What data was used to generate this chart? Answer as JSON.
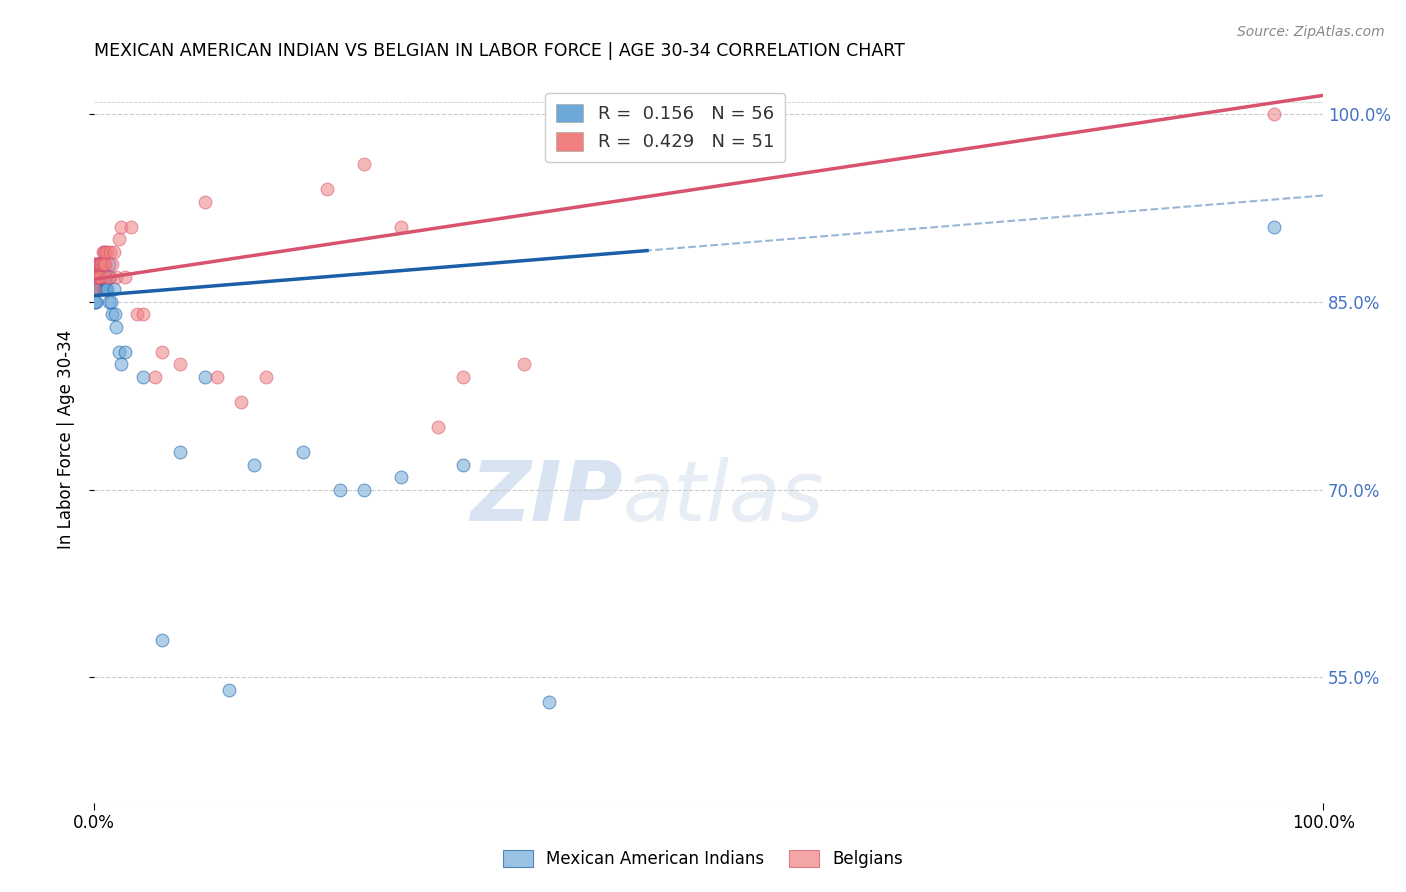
{
  "title": "MEXICAN AMERICAN INDIAN VS BELGIAN IN LABOR FORCE | AGE 30-34 CORRELATION CHART",
  "source": "Source: ZipAtlas.com",
  "ylabel": "In Labor Force | Age 30-34",
  "xlim": [
    0.0,
    1.0
  ],
  "ylim": [
    0.45,
    1.03
  ],
  "yticks": [
    0.55,
    0.7,
    0.85,
    1.0
  ],
  "ytick_labels": [
    "55.0%",
    "70.0%",
    "85.0%",
    "100.0%"
  ],
  "xtick_labels": [
    "0.0%",
    "100.0%"
  ],
  "blue_R": 0.156,
  "blue_N": 56,
  "pink_R": 0.429,
  "pink_N": 51,
  "blue_color": "#6ea8d8",
  "pink_color": "#f08080",
  "blue_line_color": "#1a5fa8",
  "pink_line_color": "#d9536f",
  "legend_label_blue": "Mexican American Indians",
  "legend_label_pink": "Belgians",
  "watermark_zip": "ZIP",
  "watermark_atlas": "atlas",
  "blue_scatter_x": [
    0.0,
    0.0,
    0.0,
    0.001,
    0.001,
    0.001,
    0.001,
    0.002,
    0.002,
    0.002,
    0.002,
    0.003,
    0.003,
    0.003,
    0.003,
    0.004,
    0.004,
    0.005,
    0.005,
    0.005,
    0.005,
    0.006,
    0.006,
    0.007,
    0.007,
    0.008,
    0.008,
    0.009,
    0.009,
    0.01,
    0.01,
    0.011,
    0.012,
    0.012,
    0.013,
    0.014,
    0.015,
    0.016,
    0.017,
    0.018,
    0.02,
    0.022,
    0.025,
    0.04,
    0.055,
    0.07,
    0.09,
    0.11,
    0.13,
    0.17,
    0.2,
    0.22,
    0.25,
    0.3,
    0.37,
    0.96
  ],
  "blue_scatter_y": [
    0.87,
    0.86,
    0.85,
    0.88,
    0.87,
    0.86,
    0.85,
    0.87,
    0.87,
    0.86,
    0.85,
    0.88,
    0.87,
    0.87,
    0.86,
    0.88,
    0.87,
    0.88,
    0.87,
    0.87,
    0.86,
    0.87,
    0.87,
    0.88,
    0.86,
    0.87,
    0.86,
    0.87,
    0.86,
    0.87,
    0.86,
    0.86,
    0.88,
    0.85,
    0.87,
    0.85,
    0.84,
    0.86,
    0.84,
    0.83,
    0.81,
    0.8,
    0.81,
    0.79,
    0.58,
    0.73,
    0.79,
    0.54,
    0.72,
    0.73,
    0.7,
    0.7,
    0.71,
    0.72,
    0.53,
    0.91
  ],
  "pink_scatter_x": [
    0.0,
    0.0,
    0.0,
    0.001,
    0.001,
    0.001,
    0.002,
    0.002,
    0.003,
    0.003,
    0.003,
    0.004,
    0.004,
    0.004,
    0.005,
    0.005,
    0.006,
    0.006,
    0.007,
    0.007,
    0.008,
    0.008,
    0.009,
    0.009,
    0.01,
    0.011,
    0.012,
    0.013,
    0.015,
    0.016,
    0.018,
    0.02,
    0.022,
    0.025,
    0.03,
    0.035,
    0.04,
    0.05,
    0.055,
    0.07,
    0.09,
    0.1,
    0.12,
    0.14,
    0.19,
    0.22,
    0.25,
    0.28,
    0.3,
    0.35,
    0.96
  ],
  "pink_scatter_y": [
    0.87,
    0.87,
    0.86,
    0.88,
    0.87,
    0.87,
    0.88,
    0.87,
    0.88,
    0.87,
    0.87,
    0.88,
    0.88,
    0.87,
    0.88,
    0.87,
    0.88,
    0.88,
    0.88,
    0.89,
    0.88,
    0.89,
    0.88,
    0.89,
    0.87,
    0.89,
    0.87,
    0.89,
    0.88,
    0.89,
    0.87,
    0.9,
    0.91,
    0.87,
    0.91,
    0.84,
    0.84,
    0.79,
    0.81,
    0.8,
    0.93,
    0.79,
    0.77,
    0.79,
    0.94,
    0.96,
    0.91,
    0.75,
    0.79,
    0.8,
    1.0
  ],
  "blue_line_x_start": 0.0,
  "blue_line_x_solid_end": 0.45,
  "blue_line_x_end": 1.0,
  "blue_line_y_start": 0.855,
  "blue_line_y_end": 0.935,
  "pink_line_x_start": 0.0,
  "pink_line_x_end": 1.0,
  "pink_line_y_start": 0.868,
  "pink_line_y_end": 1.015
}
